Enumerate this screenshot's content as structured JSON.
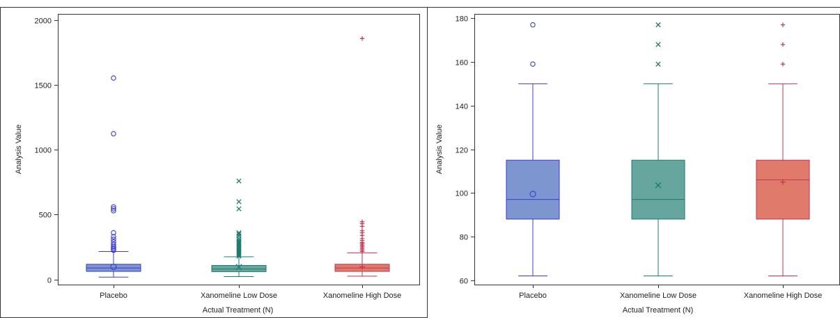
{
  "chart_data": [
    {
      "type": "box",
      "xlabel": "Actual Treatment (N)",
      "ylabel": "Analysis Value",
      "ylim": [
        -40,
        2050
      ],
      "yticks": [
        0,
        500,
        1000,
        1500,
        2000
      ],
      "grid": false,
      "categories": [
        "Placebo",
        "Xanomeline Low Dose",
        "Xanomeline High Dose"
      ],
      "series": [
        {
          "q1": 62,
          "median": 88,
          "q3": 117,
          "whisker_low": 18,
          "whisker_high": 215,
          "mean": 97,
          "outliers": [
            225,
            235,
            245,
            255,
            270,
            290,
            310,
            330,
            360,
            530,
            545,
            560,
            1125,
            1555
          ],
          "marker": "circle",
          "color": "#3b3bd1",
          "fill": "#7d96d0"
        },
        {
          "q1": 60,
          "median": 80,
          "q3": 108,
          "whisker_low": 22,
          "whisker_high": 175,
          "mean": 95,
          "outliers": [
            180,
            190,
            200,
            210,
            220,
            230,
            240,
            250,
            260,
            270,
            280,
            290,
            300,
            315,
            335,
            350,
            360,
            545,
            600,
            760
          ],
          "marker": "x",
          "color": "#1f7a6c",
          "fill": "#65a79e"
        },
        {
          "q1": 62,
          "median": 88,
          "q3": 117,
          "whisker_low": 25,
          "whisker_high": 205,
          "mean": 97,
          "outliers": [
            215,
            225,
            235,
            245,
            255,
            265,
            275,
            285,
            300,
            315,
            340,
            360,
            375,
            410,
            430,
            445,
            1860
          ],
          "marker": "plus",
          "color": "#c0334f",
          "fill": "#e07b6c"
        }
      ]
    },
    {
      "type": "box",
      "xlabel": "Actual Treatment (N)",
      "ylabel": "Analysis Value",
      "ylim": [
        58,
        182
      ],
      "yticks": [
        60,
        80,
        100,
        120,
        140,
        160,
        180
      ],
      "grid": false,
      "categories": [
        "Placebo",
        "Xanomeline Low Dose",
        "Xanomeline High Dose"
      ],
      "series": [
        {
          "q1": 88,
          "median": 97,
          "q3": 115,
          "whisker_low": 62,
          "whisker_high": 150,
          "mean": 99.5,
          "outliers": [
            159,
            177
          ],
          "marker": "circle",
          "color": "#3b3bd1",
          "fill": "#7d96d0"
        },
        {
          "q1": 88,
          "median": 97,
          "q3": 115,
          "whisker_low": 62,
          "whisker_high": 150,
          "mean": 103.5,
          "outliers": [
            159,
            168,
            177
          ],
          "marker": "x",
          "color": "#1f7a6c",
          "fill": "#65a79e"
        },
        {
          "q1": 88,
          "median": 106,
          "q3": 115,
          "whisker_low": 62,
          "whisker_high": 150,
          "mean": 105,
          "outliers": [
            159,
            168,
            177
          ],
          "marker": "plus",
          "color": "#c0334f",
          "fill": "#e07b6c"
        }
      ]
    }
  ]
}
